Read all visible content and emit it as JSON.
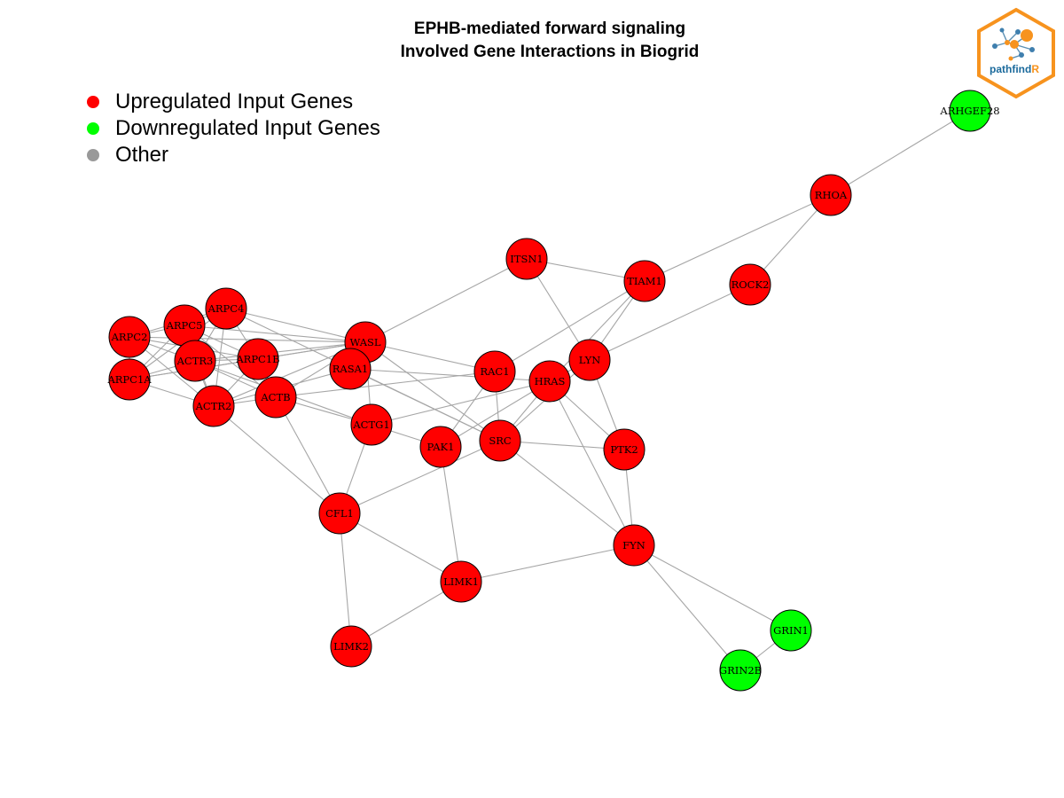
{
  "title": {
    "line1": "EPHB-mediated forward signaling",
    "line2": "Involved Gene Interactions in Biogrid"
  },
  "legend": [
    {
      "label": "Upregulated Input Genes",
      "color": "#ff0000"
    },
    {
      "label": "Downregulated Input Genes",
      "color": "#00ff00"
    },
    {
      "label": "Other",
      "color": "#999999"
    }
  ],
  "logo": {
    "text_main": "pathfind",
    "text_accent": "R",
    "accent_color": "#f7931e",
    "main_color": "#1b6a9c"
  },
  "colors": {
    "up": "#ff0000",
    "down": "#00ff00",
    "other": "#999999",
    "edge": "#a6a6a6"
  },
  "nodes": [
    {
      "id": "ARHGEF28",
      "status": "down"
    },
    {
      "id": "RHOA",
      "status": "up"
    },
    {
      "id": "ITSN1",
      "status": "up"
    },
    {
      "id": "TIAM1",
      "status": "up"
    },
    {
      "id": "ROCK2",
      "status": "up"
    },
    {
      "id": "ARPC4",
      "status": "up"
    },
    {
      "id": "ARPC5",
      "status": "up"
    },
    {
      "id": "ARPC2",
      "status": "up"
    },
    {
      "id": "WASL",
      "status": "up"
    },
    {
      "id": "ACTR3",
      "status": "up"
    },
    {
      "id": "ARPC1B",
      "status": "up"
    },
    {
      "id": "RASA1",
      "status": "up"
    },
    {
      "id": "LYN",
      "status": "up"
    },
    {
      "id": "ARPC1A",
      "status": "up"
    },
    {
      "id": "RAC1",
      "status": "up"
    },
    {
      "id": "HRAS",
      "status": "up"
    },
    {
      "id": "ACTR2",
      "status": "up"
    },
    {
      "id": "ACTB",
      "status": "up"
    },
    {
      "id": "ACTG1",
      "status": "up"
    },
    {
      "id": "SRC",
      "status": "up"
    },
    {
      "id": "PAK1",
      "status": "up"
    },
    {
      "id": "PTK2",
      "status": "up"
    },
    {
      "id": "CFL1",
      "status": "up"
    },
    {
      "id": "FYN",
      "status": "up"
    },
    {
      "id": "LIMK1",
      "status": "up"
    },
    {
      "id": "LIMK2",
      "status": "up"
    },
    {
      "id": "GRIN1",
      "status": "down"
    },
    {
      "id": "GRIN2B",
      "status": "down"
    }
  ],
  "edges": [
    [
      "ARHGEF28",
      "RHOA"
    ],
    [
      "RHOA",
      "TIAM1"
    ],
    [
      "RHOA",
      "ROCK2"
    ],
    [
      "ITSN1",
      "TIAM1"
    ],
    [
      "ITSN1",
      "WASL"
    ],
    [
      "ITSN1",
      "LYN"
    ],
    [
      "TIAM1",
      "RAC1"
    ],
    [
      "TIAM1",
      "LYN"
    ],
    [
      "TIAM1",
      "HRAS"
    ],
    [
      "ROCK2",
      "LYN"
    ],
    [
      "ARPC4",
      "ARPC5"
    ],
    [
      "ARPC4",
      "ARPC2"
    ],
    [
      "ARPC4",
      "ACTR3"
    ],
    [
      "ARPC4",
      "ARPC1B"
    ],
    [
      "ARPC4",
      "ARPC1A"
    ],
    [
      "ARPC4",
      "ACTR2"
    ],
    [
      "ARPC4",
      "WASL"
    ],
    [
      "ARPC4",
      "SRC"
    ],
    [
      "ARPC5",
      "ARPC2"
    ],
    [
      "ARPC5",
      "ACTR3"
    ],
    [
      "ARPC5",
      "ARPC1B"
    ],
    [
      "ARPC5",
      "ARPC1A"
    ],
    [
      "ARPC5",
      "ACTR2"
    ],
    [
      "ARPC5",
      "ACTB"
    ],
    [
      "ARPC5",
      "WASL"
    ],
    [
      "ARPC2",
      "ACTR3"
    ],
    [
      "ARPC2",
      "ARPC1B"
    ],
    [
      "ARPC2",
      "ARPC1A"
    ],
    [
      "ARPC2",
      "ACTR2"
    ],
    [
      "ARPC2",
      "WASL"
    ],
    [
      "ACTR3",
      "ARPC1B"
    ],
    [
      "ACTR3",
      "ARPC1A"
    ],
    [
      "ACTR3",
      "ACTR2"
    ],
    [
      "ACTR3",
      "ACTB"
    ],
    [
      "ACTR3",
      "WASL"
    ],
    [
      "ACTR3",
      "ACTG1"
    ],
    [
      "ARPC1B",
      "ARPC1A"
    ],
    [
      "ARPC1B",
      "ACTR2"
    ],
    [
      "ARPC1B",
      "WASL"
    ],
    [
      "ARPC1A",
      "ACTR2"
    ],
    [
      "ARPC1A",
      "WASL"
    ],
    [
      "ACTR2",
      "WASL"
    ],
    [
      "ACTR2",
      "CFL1"
    ],
    [
      "ACTR2",
      "ACTB"
    ],
    [
      "WASL",
      "ACTB"
    ],
    [
      "WASL",
      "SRC"
    ],
    [
      "WASL",
      "RAC1"
    ],
    [
      "WASL",
      "ACTG1"
    ],
    [
      "RASA1",
      "HRAS"
    ],
    [
      "RASA1",
      "SRC"
    ],
    [
      "RASA1",
      "ACTR2"
    ],
    [
      "ACTB",
      "CFL1"
    ],
    [
      "ACTB",
      "ACTG1"
    ],
    [
      "ACTB",
      "RAC1"
    ],
    [
      "ACTG1",
      "CFL1"
    ],
    [
      "ACTG1",
      "PAK1"
    ],
    [
      "ACTG1",
      "HRAS"
    ],
    [
      "RAC1",
      "PAK1"
    ],
    [
      "RAC1",
      "SRC"
    ],
    [
      "HRAS",
      "PAK1"
    ],
    [
      "HRAS",
      "SRC"
    ],
    [
      "HRAS",
      "PTK2"
    ],
    [
      "HRAS",
      "LYN"
    ],
    [
      "HRAS",
      "FYN"
    ],
    [
      "LYN",
      "PTK2"
    ],
    [
      "LYN",
      "SRC"
    ],
    [
      "SRC",
      "PTK2"
    ],
    [
      "SRC",
      "FYN"
    ],
    [
      "SRC",
      "CFL1"
    ],
    [
      "PAK1",
      "LIMK1"
    ],
    [
      "PTK2",
      "FYN"
    ],
    [
      "CFL1",
      "LIMK1"
    ],
    [
      "CFL1",
      "LIMK2"
    ],
    [
      "LIMK1",
      "LIMK2"
    ],
    [
      "LIMK1",
      "FYN"
    ],
    [
      "FYN",
      "GRIN1"
    ],
    [
      "FYN",
      "GRIN2B"
    ],
    [
      "GRIN1",
      "GRIN2B"
    ]
  ]
}
